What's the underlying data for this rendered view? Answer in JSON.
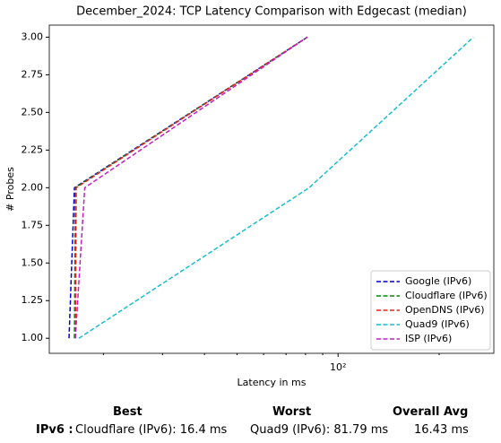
{
  "chart_data": {
    "type": "line",
    "title": "December_2024: TCP Latency Comparison with Edgecast (median)",
    "x_label": "Latency in ms",
    "y_label": "# Probes",
    "xscale": "log",
    "xlim": [
      13.8,
      291
    ],
    "xticks": [
      {
        "value": 100,
        "label": "10²"
      }
    ],
    "x_minor_ticks": [
      20,
      30,
      40,
      50,
      60,
      70,
      80,
      90,
      200
    ],
    "ylim": [
      0.9,
      3.08
    ],
    "yticks": [
      {
        "value": 1,
        "label": "1.00"
      },
      {
        "value": 1.25,
        "label": "1.25"
      },
      {
        "value": 1.5,
        "label": "1.50"
      },
      {
        "value": 1.75,
        "label": "1.75"
      },
      {
        "value": 2,
        "label": "2.00"
      },
      {
        "value": 2.25,
        "label": "2.25"
      },
      {
        "value": 2.5,
        "label": "2.50"
      },
      {
        "value": 2.75,
        "label": "2.75"
      },
      {
        "value": 3,
        "label": "3.00"
      }
    ],
    "legend": "lower right",
    "series": [
      {
        "name": "Google (IPv6)",
        "color": "#0000cc",
        "x": [
          15.8,
          16.4,
          81
        ],
        "values": [
          1,
          2,
          3
        ]
      },
      {
        "name": "Cloudflare (IPv6)",
        "color": "#008800",
        "x": [
          16.4,
          16.5,
          81
        ],
        "values": [
          1,
          2,
          3
        ]
      },
      {
        "name": "OpenDNS (IPv6)",
        "color": "#e8231f",
        "x": [
          16.5,
          16.6,
          81
        ],
        "values": [
          1,
          2,
          3
        ]
      },
      {
        "name": "Quad9 (IPv6)",
        "color": "#17becf",
        "x": [
          16.9,
          82,
          253
        ],
        "values": [
          1,
          2,
          3
        ]
      },
      {
        "name": "ISP (IPv6)",
        "color": "#c020c0",
        "x": [
          16.5,
          17.6,
          81
        ],
        "values": [
          1,
          2,
          3
        ]
      }
    ]
  },
  "summary": {
    "headers": [
      "Best",
      "Worst",
      "Overall Avg"
    ],
    "row_label": "IPv6 :",
    "best": "Cloudflare (IPv6): 16.4 ms",
    "worst": "Quad9 (IPv6): 81.79 ms",
    "avg": "16.43 ms"
  }
}
